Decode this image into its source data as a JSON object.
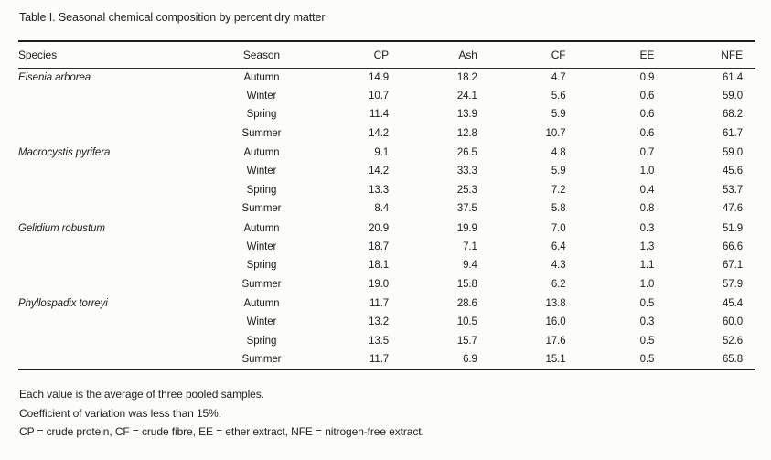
{
  "title": "Table I. Seasonal chemical composition by percent dry matter",
  "table": {
    "columns": [
      "Species",
      "Season",
      "CP",
      "Ash",
      "CF",
      "EE",
      "NFE"
    ],
    "groups": [
      {
        "species": "Eisenia arborea",
        "rows": [
          {
            "season": "Autumn",
            "cp": "14.9",
            "ash": "18.2",
            "cf": "4.7",
            "ee": "0.9",
            "nfe": "61.4"
          },
          {
            "season": "Winter",
            "cp": "10.7",
            "ash": "24.1",
            "cf": "5.6",
            "ee": "0.6",
            "nfe": "59.0"
          },
          {
            "season": "Spring",
            "cp": "11.4",
            "ash": "13.9",
            "cf": "5.9",
            "ee": "0.6",
            "nfe": "68.2"
          },
          {
            "season": "Summer",
            "cp": "14.2",
            "ash": "12.8",
            "cf": "10.7",
            "ee": "0.6",
            "nfe": "61.7"
          }
        ]
      },
      {
        "species": "Macrocystis pyrifera",
        "rows": [
          {
            "season": "Autumn",
            "cp": "9.1",
            "ash": "26.5",
            "cf": "4.8",
            "ee": "0.7",
            "nfe": "59.0"
          },
          {
            "season": "Winter",
            "cp": "14.2",
            "ash": "33.3",
            "cf": "5.9",
            "ee": "1.0",
            "nfe": "45.6"
          },
          {
            "season": "Spring",
            "cp": "13.3",
            "ash": "25.3",
            "cf": "7.2",
            "ee": "0.4",
            "nfe": "53.7"
          },
          {
            "season": "Summer",
            "cp": "8.4",
            "ash": "37.5",
            "cf": "5.8",
            "ee": "0.8",
            "nfe": "47.6"
          }
        ]
      },
      {
        "species": "Gelidium robustum",
        "rows": [
          {
            "season": "Autumn",
            "cp": "20.9",
            "ash": "19.9",
            "cf": "7.0",
            "ee": "0.3",
            "nfe": "51.9"
          },
          {
            "season": "Winter",
            "cp": "18.7",
            "ash": "7.1",
            "cf": "6.4",
            "ee": "1.3",
            "nfe": "66.6"
          },
          {
            "season": "Spring",
            "cp": "18.1",
            "ash": "9.4",
            "cf": "4.3",
            "ee": "1.1",
            "nfe": "67.1"
          },
          {
            "season": "Summer",
            "cp": "19.0",
            "ash": "15.8",
            "cf": "6.2",
            "ee": "1.0",
            "nfe": "57.9"
          }
        ]
      },
      {
        "species": "Phyllospadix torreyi",
        "rows": [
          {
            "season": "Autumn",
            "cp": "11.7",
            "ash": "28.6",
            "cf": "13.8",
            "ee": "0.5",
            "nfe": "45.4"
          },
          {
            "season": "Winter",
            "cp": "13.2",
            "ash": "10.5",
            "cf": "16.0",
            "ee": "0.3",
            "nfe": "60.0"
          },
          {
            "season": "Spring",
            "cp": "13.5",
            "ash": "15.7",
            "cf": "17.6",
            "ee": "0.5",
            "nfe": "52.6"
          },
          {
            "season": "Summer",
            "cp": "11.7",
            "ash": "6.9",
            "cf": "15.1",
            "ee": "0.5",
            "nfe": "65.8"
          }
        ]
      }
    ]
  },
  "footnotes": [
    "Each value is the average of three pooled samples.",
    "Coefficient of variation was less than 15%.",
    "CP = crude protein, CF = crude fibre, EE = ether extract, NFE = nitrogen-free extract."
  ],
  "colors": {
    "background": "#fcfcfa",
    "text": "#1c1c1c",
    "rule": "#1f1f1f"
  }
}
